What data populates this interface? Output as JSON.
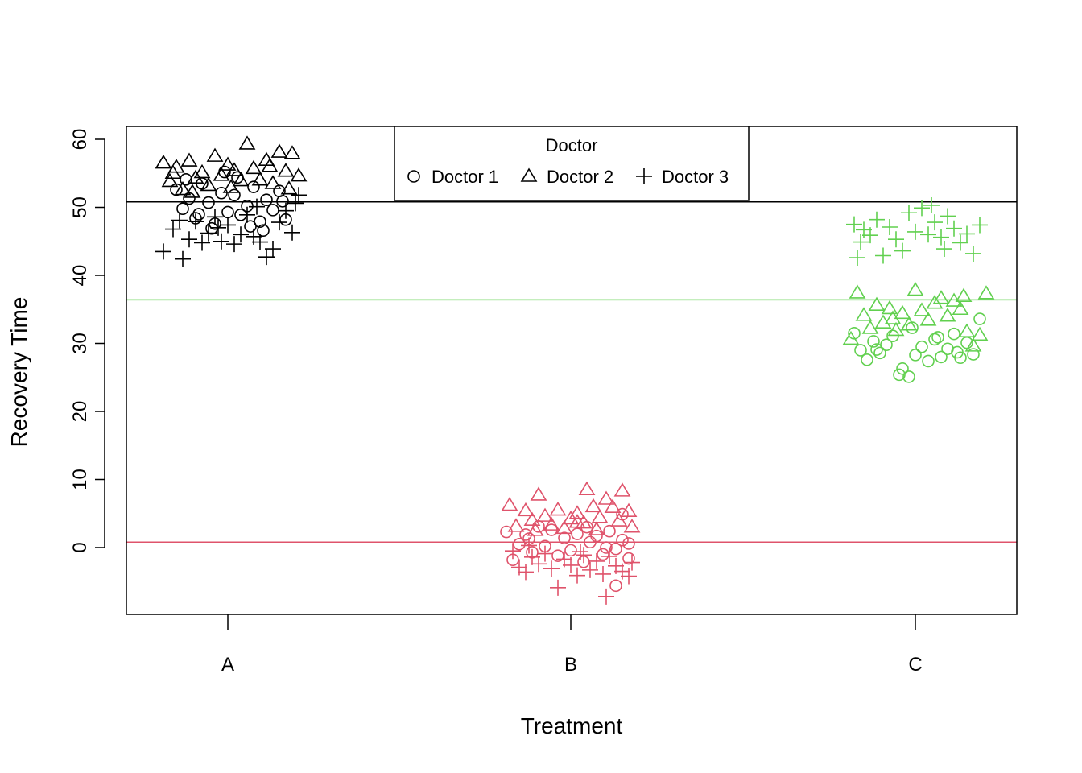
{
  "chart_data": {
    "type": "scatter",
    "title": "",
    "xlabel": "Treatment",
    "ylabel": "Recovery Time",
    "categories": [
      "A",
      "B",
      "C"
    ],
    "ylim": [
      -10,
      62
    ],
    "yticks": [
      "0",
      "10",
      "20",
      "30",
      "40",
      "50",
      "60"
    ],
    "grid": false,
    "legend": {
      "title": "Doctor",
      "placement": "top-center",
      "entries": [
        {
          "label": "Doctor 1",
          "symbol": "circle"
        },
        {
          "label": "Doctor 2",
          "symbol": "triangle"
        },
        {
          "label": "Doctor 3",
          "symbol": "plus"
        }
      ]
    },
    "group_colors": {
      "A": "#000000",
      "B": "#DF536B",
      "C": "#61D04F"
    },
    "reference_lines": [
      {
        "treatment": "A",
        "y": 50.8,
        "color": "#000000"
      },
      {
        "treatment": "B",
        "y": 0.8,
        "color": "#DF536B"
      },
      {
        "treatment": "C",
        "y": 36.4,
        "color": "#61D04F"
      }
    ],
    "series": [
      {
        "treatment": "A",
        "doctor": "Doctor 1",
        "symbol": "circle",
        "color": "#000000",
        "points": [
          {
            "x": -0.16,
            "y": 52.6
          },
          {
            "x": -0.14,
            "y": 49.8
          },
          {
            "x": -0.12,
            "y": 51.3
          },
          {
            "x": -0.1,
            "y": 48.4
          },
          {
            "x": -0.08,
            "y": 53.5
          },
          {
            "x": -0.06,
            "y": 50.7
          },
          {
            "x": -0.04,
            "y": 47.6
          },
          {
            "x": -0.02,
            "y": 52.1
          },
          {
            "x": 0.0,
            "y": 49.3
          },
          {
            "x": 0.02,
            "y": 51.8
          },
          {
            "x": 0.04,
            "y": 48.9
          },
          {
            "x": 0.06,
            "y": 50.2
          },
          {
            "x": 0.08,
            "y": 53.0
          },
          {
            "x": 0.1,
            "y": 47.9
          },
          {
            "x": 0.12,
            "y": 51.1
          },
          {
            "x": 0.14,
            "y": 49.6
          },
          {
            "x": 0.16,
            "y": 52.4
          },
          {
            "x": 0.18,
            "y": 48.2
          },
          {
            "x": -0.13,
            "y": 54.1
          },
          {
            "x": -0.05,
            "y": 46.9
          },
          {
            "x": 0.03,
            "y": 54.4
          },
          {
            "x": 0.11,
            "y": 46.6
          },
          {
            "x": 0.17,
            "y": 50.9
          },
          {
            "x": -0.09,
            "y": 49.0
          },
          {
            "x": 0.07,
            "y": 47.2
          },
          {
            "x": -0.01,
            "y": 55.2
          }
        ]
      },
      {
        "treatment": "A",
        "doctor": "Doctor 2",
        "symbol": "triangle",
        "color": "#000000",
        "points": [
          {
            "x": -0.2,
            "y": 56.5
          },
          {
            "x": -0.18,
            "y": 53.8
          },
          {
            "x": -0.16,
            "y": 55.9
          },
          {
            "x": -0.14,
            "y": 52.6
          },
          {
            "x": -0.12,
            "y": 56.8
          },
          {
            "x": -0.1,
            "y": 54.3
          },
          {
            "x": -0.08,
            "y": 55.1
          },
          {
            "x": -0.06,
            "y": 53.2
          },
          {
            "x": -0.04,
            "y": 57.5
          },
          {
            "x": -0.02,
            "y": 54.7
          },
          {
            "x": 0.0,
            "y": 56.2
          },
          {
            "x": 0.02,
            "y": 55.4
          },
          {
            "x": 0.04,
            "y": 53.9
          },
          {
            "x": 0.06,
            "y": 59.3
          },
          {
            "x": 0.08,
            "y": 55.7
          },
          {
            "x": 0.1,
            "y": 54.0
          },
          {
            "x": 0.12,
            "y": 56.9
          },
          {
            "x": 0.14,
            "y": 53.5
          },
          {
            "x": 0.16,
            "y": 58.1
          },
          {
            "x": 0.18,
            "y": 55.3
          },
          {
            "x": 0.2,
            "y": 57.9
          },
          {
            "x": 0.22,
            "y": 54.6
          },
          {
            "x": -0.11,
            "y": 52.2
          },
          {
            "x": 0.01,
            "y": 52.9
          },
          {
            "x": 0.13,
            "y": 56.0
          },
          {
            "x": 0.19,
            "y": 52.7
          },
          {
            "x": -0.17,
            "y": 55.0
          }
        ]
      },
      {
        "treatment": "A",
        "doctor": "Doctor 3",
        "symbol": "plus",
        "color": "#000000",
        "points": [
          {
            "x": -0.2,
            "y": 43.5
          },
          {
            "x": -0.17,
            "y": 46.8
          },
          {
            "x": -0.14,
            "y": 42.4
          },
          {
            "x": -0.12,
            "y": 45.3
          },
          {
            "x": -0.1,
            "y": 47.9
          },
          {
            "x": -0.08,
            "y": 44.8
          },
          {
            "x": -0.06,
            "y": 46.2
          },
          {
            "x": -0.04,
            "y": 48.6
          },
          {
            "x": -0.02,
            "y": 45.0
          },
          {
            "x": 0.0,
            "y": 47.4
          },
          {
            "x": 0.02,
            "y": 44.6
          },
          {
            "x": 0.04,
            "y": 46.0
          },
          {
            "x": 0.06,
            "y": 48.9
          },
          {
            "x": 0.08,
            "y": 45.7
          },
          {
            "x": 0.1,
            "y": 44.9
          },
          {
            "x": 0.12,
            "y": 42.7
          },
          {
            "x": 0.14,
            "y": 43.9
          },
          {
            "x": 0.16,
            "y": 47.8
          },
          {
            "x": 0.18,
            "y": 49.5
          },
          {
            "x": 0.2,
            "y": 46.3
          },
          {
            "x": 0.22,
            "y": 51.8
          },
          {
            "x": -0.15,
            "y": 48.1
          },
          {
            "x": -0.03,
            "y": 47.0
          },
          {
            "x": 0.09,
            "y": 50.1
          },
          {
            "x": 0.21,
            "y": 50.6
          }
        ]
      },
      {
        "treatment": "B",
        "doctor": "Doctor 1",
        "symbol": "circle",
        "color": "#DF536B",
        "points": [
          {
            "x": -0.2,
            "y": 2.3
          },
          {
            "x": -0.18,
            "y": -1.8
          },
          {
            "x": -0.16,
            "y": 0.5
          },
          {
            "x": -0.14,
            "y": 1.9
          },
          {
            "x": -0.12,
            "y": -0.7
          },
          {
            "x": -0.1,
            "y": 3.1
          },
          {
            "x": -0.08,
            "y": 0.2
          },
          {
            "x": -0.06,
            "y": 2.6
          },
          {
            "x": -0.04,
            "y": -1.2
          },
          {
            "x": -0.02,
            "y": 1.4
          },
          {
            "x": 0.0,
            "y": -0.4
          },
          {
            "x": 0.02,
            "y": 2.0
          },
          {
            "x": 0.04,
            "y": -2.1
          },
          {
            "x": 0.06,
            "y": 0.8
          },
          {
            "x": 0.08,
            "y": 1.7
          },
          {
            "x": 0.1,
            "y": -1.0
          },
          {
            "x": 0.12,
            "y": 2.4
          },
          {
            "x": 0.14,
            "y": -0.2
          },
          {
            "x": 0.16,
            "y": 1.1
          },
          {
            "x": 0.18,
            "y": -1.6
          },
          {
            "x": 0.14,
            "y": -5.6
          },
          {
            "x": 0.16,
            "y": 4.9
          },
          {
            "x": 0.18,
            "y": 0.6
          },
          {
            "x": -0.13,
            "y": 1.3
          },
          {
            "x": 0.05,
            "y": 3.0
          },
          {
            "x": 0.11,
            "y": 0.0
          }
        ]
      },
      {
        "treatment": "B",
        "doctor": "Doctor 2",
        "symbol": "triangle",
        "color": "#DF536B",
        "points": [
          {
            "x": -0.19,
            "y": 6.2
          },
          {
            "x": -0.17,
            "y": 3.1
          },
          {
            "x": -0.14,
            "y": 5.4
          },
          {
            "x": -0.12,
            "y": 4.0
          },
          {
            "x": -0.1,
            "y": 7.7
          },
          {
            "x": -0.08,
            "y": 4.6
          },
          {
            "x": -0.06,
            "y": 3.3
          },
          {
            "x": -0.04,
            "y": 5.5
          },
          {
            "x": -0.02,
            "y": 2.8
          },
          {
            "x": 0.0,
            "y": 4.2
          },
          {
            "x": 0.02,
            "y": 5.0
          },
          {
            "x": 0.04,
            "y": 3.6
          },
          {
            "x": 0.05,
            "y": 8.5
          },
          {
            "x": 0.07,
            "y": 6.0
          },
          {
            "x": 0.09,
            "y": 4.4
          },
          {
            "x": 0.11,
            "y": 7.1
          },
          {
            "x": 0.13,
            "y": 5.9
          },
          {
            "x": 0.15,
            "y": 3.9
          },
          {
            "x": 0.16,
            "y": 8.3
          },
          {
            "x": 0.18,
            "y": 5.3
          },
          {
            "x": 0.19,
            "y": 3.0
          },
          {
            "x": 0.08,
            "y": 2.6
          },
          {
            "x": -0.11,
            "y": 2.5
          },
          {
            "x": 0.02,
            "y": 3.7
          }
        ]
      },
      {
        "treatment": "B",
        "doctor": "Doctor 3",
        "symbol": "plus",
        "color": "#DF536B",
        "points": [
          {
            "x": -0.18,
            "y": -0.5
          },
          {
            "x": -0.16,
            "y": -2.9
          },
          {
            "x": -0.14,
            "y": -3.6
          },
          {
            "x": -0.12,
            "y": -1.4
          },
          {
            "x": -0.1,
            "y": -2.4
          },
          {
            "x": -0.08,
            "y": -0.9
          },
          {
            "x": -0.06,
            "y": -3.1
          },
          {
            "x": -0.04,
            "y": -5.9
          },
          {
            "x": -0.02,
            "y": -1.7
          },
          {
            "x": 0.0,
            "y": -2.6
          },
          {
            "x": 0.02,
            "y": -4.1
          },
          {
            "x": 0.04,
            "y": -1.1
          },
          {
            "x": 0.06,
            "y": -3.3
          },
          {
            "x": 0.08,
            "y": -2.0
          },
          {
            "x": 0.1,
            "y": -3.9
          },
          {
            "x": 0.11,
            "y": -7.2
          },
          {
            "x": 0.12,
            "y": -1.3
          },
          {
            "x": 0.14,
            "y": -2.7
          },
          {
            "x": 0.16,
            "y": -3.5
          },
          {
            "x": 0.18,
            "y": -4.2
          },
          {
            "x": 0.19,
            "y": -2.2
          },
          {
            "x": -0.13,
            "y": 0.3
          },
          {
            "x": 0.03,
            "y": -0.6
          }
        ]
      },
      {
        "treatment": "C",
        "doctor": "Doctor 1",
        "symbol": "circle",
        "color": "#61D04F",
        "points": [
          {
            "x": -0.19,
            "y": 31.5
          },
          {
            "x": -0.17,
            "y": 29.0
          },
          {
            "x": -0.15,
            "y": 27.6
          },
          {
            "x": -0.13,
            "y": 30.3
          },
          {
            "x": -0.11,
            "y": 28.6
          },
          {
            "x": -0.09,
            "y": 29.8
          },
          {
            "x": -0.07,
            "y": 31.1
          },
          {
            "x": -0.05,
            "y": 25.4
          },
          {
            "x": -0.04,
            "y": 26.3
          },
          {
            "x": -0.02,
            "y": 25.1
          },
          {
            "x": 0.0,
            "y": 28.3
          },
          {
            "x": 0.02,
            "y": 29.5
          },
          {
            "x": 0.04,
            "y": 27.4
          },
          {
            "x": 0.06,
            "y": 30.6
          },
          {
            "x": 0.08,
            "y": 28.0
          },
          {
            "x": 0.1,
            "y": 29.2
          },
          {
            "x": 0.12,
            "y": 31.4
          },
          {
            "x": 0.14,
            "y": 27.9
          },
          {
            "x": 0.16,
            "y": 30.1
          },
          {
            "x": 0.18,
            "y": 28.4
          },
          {
            "x": 0.2,
            "y": 33.6
          },
          {
            "x": -0.01,
            "y": 32.3
          },
          {
            "x": 0.13,
            "y": 28.7
          },
          {
            "x": -0.12,
            "y": 29.1
          },
          {
            "x": 0.07,
            "y": 30.9
          }
        ]
      },
      {
        "treatment": "C",
        "doctor": "Doctor 2",
        "symbol": "triangle",
        "color": "#61D04F",
        "points": [
          {
            "x": -0.2,
            "y": 30.6
          },
          {
            "x": -0.18,
            "y": 37.4
          },
          {
            "x": -0.16,
            "y": 34.1
          },
          {
            "x": -0.14,
            "y": 32.2
          },
          {
            "x": -0.12,
            "y": 35.6
          },
          {
            "x": -0.1,
            "y": 33.0
          },
          {
            "x": -0.08,
            "y": 35.1
          },
          {
            "x": -0.06,
            "y": 31.9
          },
          {
            "x": -0.04,
            "y": 34.4
          },
          {
            "x": -0.02,
            "y": 32.7
          },
          {
            "x": 0.0,
            "y": 37.8
          },
          {
            "x": 0.02,
            "y": 34.8
          },
          {
            "x": 0.04,
            "y": 33.4
          },
          {
            "x": 0.06,
            "y": 35.9
          },
          {
            "x": 0.08,
            "y": 36.6
          },
          {
            "x": 0.1,
            "y": 34.0
          },
          {
            "x": 0.12,
            "y": 36.2
          },
          {
            "x": 0.14,
            "y": 35.0
          },
          {
            "x": 0.16,
            "y": 31.7
          },
          {
            "x": 0.18,
            "y": 29.6
          },
          {
            "x": 0.2,
            "y": 31.2
          },
          {
            "x": 0.22,
            "y": 37.3
          },
          {
            "x": 0.15,
            "y": 36.9
          },
          {
            "x": -0.07,
            "y": 33.6
          }
        ]
      },
      {
        "treatment": "C",
        "doctor": "Doctor 3",
        "symbol": "plus",
        "color": "#61D04F",
        "points": [
          {
            "x": -0.19,
            "y": 47.5
          },
          {
            "x": -0.18,
            "y": 42.6
          },
          {
            "x": -0.16,
            "y": 46.7
          },
          {
            "x": -0.14,
            "y": 45.9
          },
          {
            "x": -0.12,
            "y": 48.2
          },
          {
            "x": -0.1,
            "y": 42.9
          },
          {
            "x": -0.08,
            "y": 47.1
          },
          {
            "x": -0.06,
            "y": 45.3
          },
          {
            "x": -0.04,
            "y": 43.6
          },
          {
            "x": -0.02,
            "y": 49.2
          },
          {
            "x": 0.0,
            "y": 46.4
          },
          {
            "x": 0.02,
            "y": 49.9
          },
          {
            "x": 0.04,
            "y": 46.0
          },
          {
            "x": 0.06,
            "y": 47.8
          },
          {
            "x": 0.08,
            "y": 45.6
          },
          {
            "x": 0.1,
            "y": 48.7
          },
          {
            "x": 0.12,
            "y": 46.9
          },
          {
            "x": 0.14,
            "y": 44.8
          },
          {
            "x": 0.16,
            "y": 46.1
          },
          {
            "x": 0.18,
            "y": 43.2
          },
          {
            "x": 0.2,
            "y": 47.4
          },
          {
            "x": 0.05,
            "y": 50.3
          },
          {
            "x": -0.17,
            "y": 44.9
          },
          {
            "x": 0.09,
            "y": 43.9
          }
        ]
      }
    ]
  }
}
